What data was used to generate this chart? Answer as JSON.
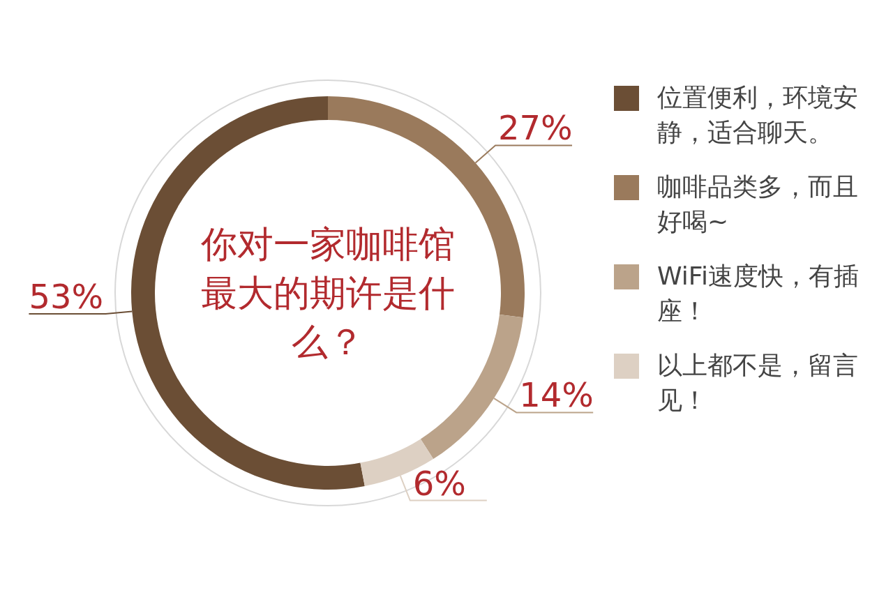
{
  "chart_data": {
    "type": "donut",
    "title": "你对一家咖啡馆最大的期许是什么？",
    "categories": [
      "位置便利，环境安静，适合聊天。",
      "咖啡品类多，而且好喝~",
      "WiFi速度快，有插座！",
      "以上都不是，留言见！"
    ],
    "values": [
      53,
      27,
      14,
      6
    ],
    "colors": [
      "#6b4e35",
      "#9a7a5c",
      "#bba38a",
      "#ddd0c3"
    ],
    "value_labels": [
      "53%",
      "27%",
      "14%",
      "6%"
    ],
    "legend": "right"
  }
}
